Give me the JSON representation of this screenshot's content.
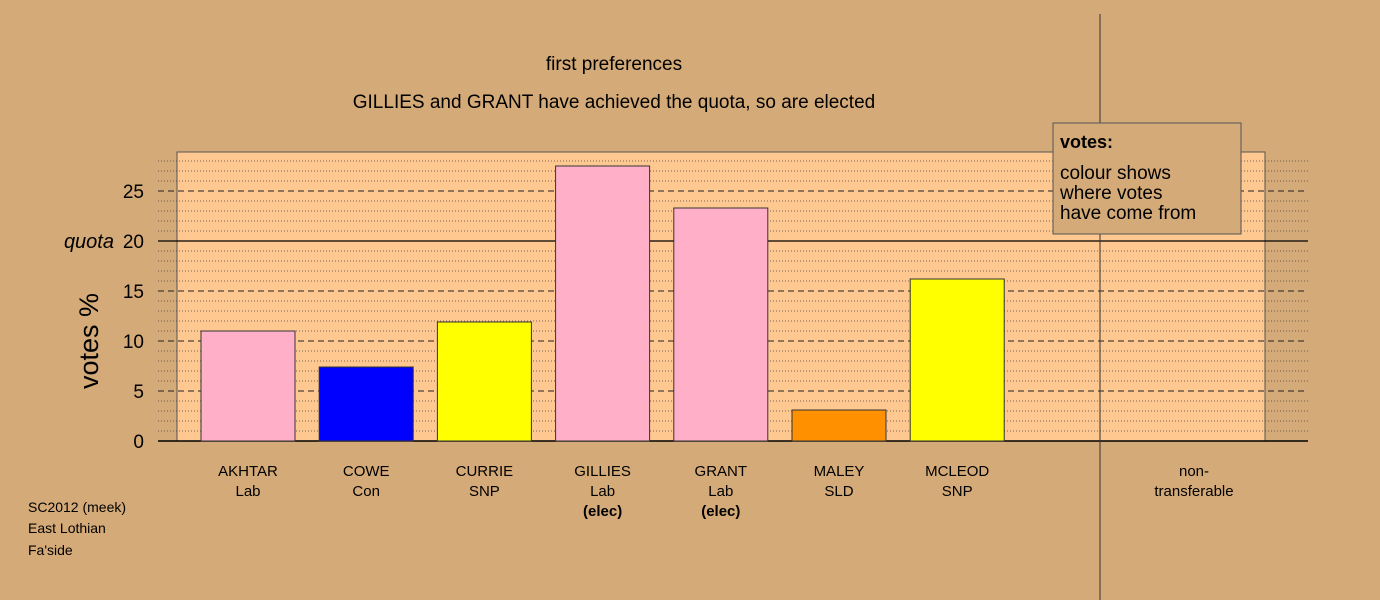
{
  "title": "first preferences",
  "subtitle": "GILLIES and GRANT have achieved the quota, so are elected",
  "footer": [
    "SC2012 (meek)",
    "East Lothian",
    "Fa'side"
  ],
  "legend": {
    "title": "votes:",
    "lines": [
      "colour shows",
      "where votes",
      "have come from"
    ]
  },
  "chart_data": {
    "type": "bar",
    "title": "first preferences",
    "subtitle": "GILLIES and GRANT have achieved the quota, so are elected",
    "ylabel": "votes %",
    "ylim": [
      0,
      28.9
    ],
    "yticks": [
      0,
      5,
      10,
      15,
      20,
      25
    ],
    "quota": 20,
    "quota_label": "quota",
    "grid": true,
    "legend_position": "top-right",
    "categories": [
      "AKHTAR",
      "COWE",
      "CURRIE",
      "GILLIES",
      "GRANT",
      "MALEY",
      "MCLEOD"
    ],
    "parties": [
      "Lab",
      "Con",
      "SNP",
      "Lab",
      "Lab",
      "SLD",
      "SNP"
    ],
    "status": [
      "",
      "",
      "",
      "(elec)",
      "(elec)",
      "",
      ""
    ],
    "values": [
      11.0,
      7.4,
      11.9,
      27.5,
      23.3,
      3.1,
      16.2
    ],
    "colors": [
      "#ffb0c8",
      "#0000ff",
      "#ffff00",
      "#ffb0c8",
      "#ffb0c8",
      "#ff9000",
      "#ffff00"
    ],
    "nontransferable_label": [
      "non-",
      "transferable"
    ],
    "nontransferable_value": 0
  },
  "colors": {
    "background": "#d4aa78",
    "plot_area": "#ffc890",
    "legend_box": "#d4aa78"
  }
}
